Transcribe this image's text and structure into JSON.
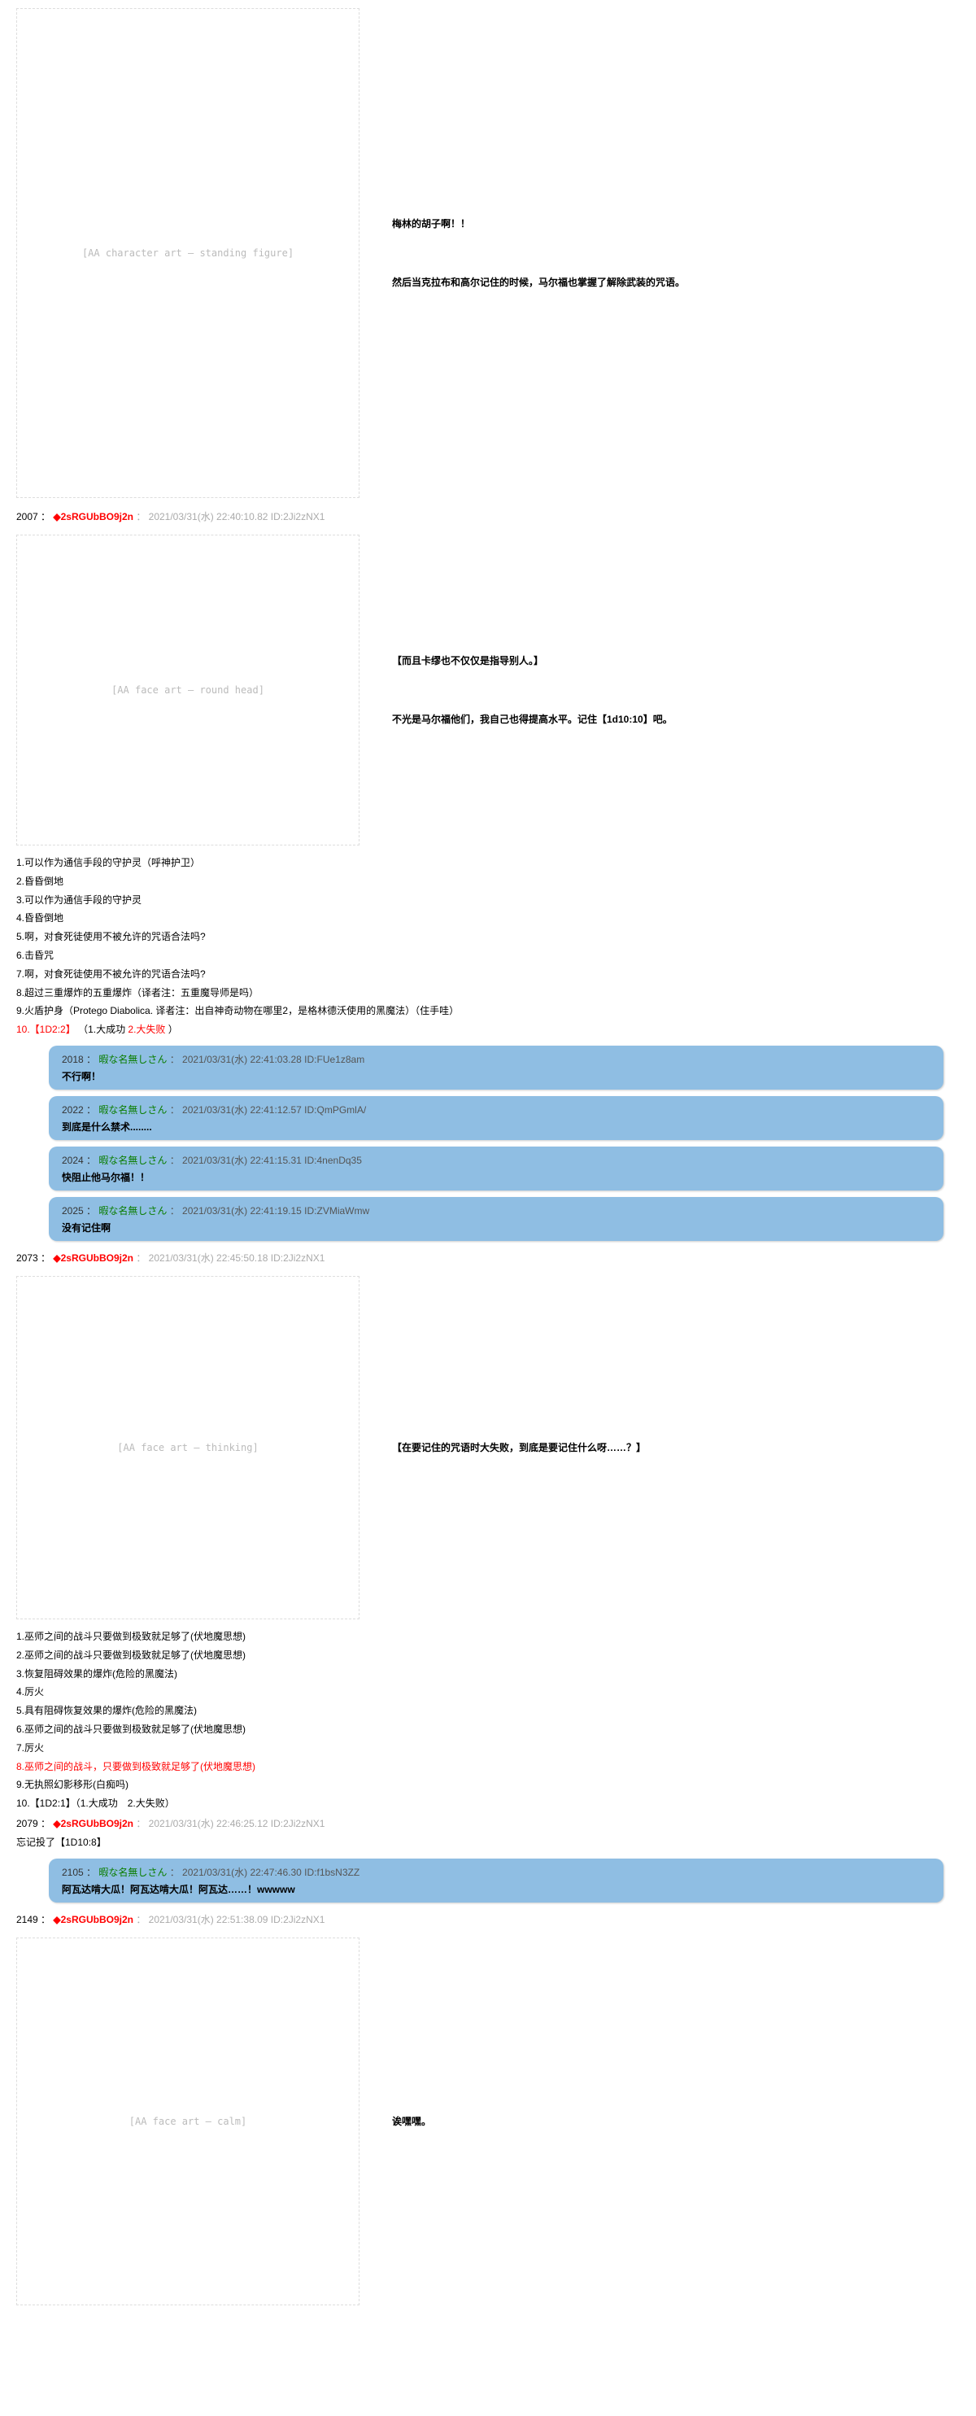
{
  "block1": {
    "art_placeholder": "[AA character art — standing figure]",
    "art_height": 600,
    "line1": "梅林的胡子啊！！",
    "line2": "然后当克拉布和高尔记住的时候，马尔福也掌握了解除武装的咒语。"
  },
  "post2007": {
    "no": "2007 ：",
    "trip": "◆2sRGUbBO9j2n",
    "date": "： 2021/03/31(水) 22:40:10.82 ID:2Ji2zNX1"
  },
  "block2": {
    "art_placeholder": "[AA face art — round head]",
    "art_height": 380,
    "line1": "【而且卡缪也不仅仅是指导别人。】",
    "line2": "不光是马尔福他们，我自己也得提高水平。记住【1d10:10】吧。"
  },
  "list1": {
    "i1": "1.可以作为通信手段的守护灵（呼神护卫）",
    "i2": "2.昏昏倒地",
    "i3": "3.可以作为通信手段的守护灵",
    "i4": "4.昏昏倒地",
    "i5": "5.啊，对食死徒使用不被允许的咒语合法吗?",
    "i6": "6.击昏咒",
    "i7": "7.啊，对食死徒使用不被允许的咒语合法吗?",
    "i8": "8.超过三重爆炸的五重爆炸（译者注：五重魔导师是吗）",
    "i9": "9.火盾护身（Protego Diabolica. 译者注：出自神奇动物在哪里2，是格林德沃使用的黑魔法）（住手哇）",
    "i10a": "10.【1D2:2】",
    "i10b": "（1.大成功 ",
    "i10c": "2.大失败",
    "i10d": "）"
  },
  "replies1": [
    {
      "no": "2018",
      "name": "暇な名無しさん",
      "date": "2021/03/31(水) 22:41:03.28 ID:FUe1z8am",
      "body": "不行啊！"
    },
    {
      "no": "2022",
      "name": "暇な名無しさん",
      "date": "2021/03/31(水) 22:41:12.57 ID:QmPGmlA/",
      "body": "到底是什么禁术........"
    },
    {
      "no": "2024",
      "name": "暇な名無しさん",
      "date": "2021/03/31(水) 22:41:15.31 ID:4nenDq35",
      "body": "快阻止他马尔福！！"
    },
    {
      "no": "2025",
      "name": "暇な名無しさん",
      "date": "2021/03/31(水) 22:41:19.15 ID:ZVMiaWmw",
      "body": "没有记住啊"
    }
  ],
  "post2073": {
    "no": "2073 ：",
    "trip": "◆2sRGUbBO9j2n",
    "date": "： 2021/03/31(水) 22:45:50.18 ID:2Ji2zNX1"
  },
  "block3": {
    "art_placeholder": "[AA face art — thinking]",
    "art_height": 420,
    "line1": "【在要记住的咒语时大失败，到底是要记住什么呀……？】"
  },
  "list2": {
    "i1": "1.巫师之间的战斗只要做到极致就足够了(伏地魔思想)",
    "i2": "2.巫师之间的战斗只要做到极致就足够了(伏地魔思想)",
    "i3": "3.恢复阻碍效果的爆炸(危险的黑魔法)",
    "i4": "4.厉火",
    "i5": "5.具有阻碍恢复效果的爆炸(危险的黑魔法)",
    "i6": "6.巫师之间的战斗只要做到极致就足够了(伏地魔思想)",
    "i7": "7.厉火",
    "i8": "8.巫师之间的战斗，只要做到极致就足够了(伏地魔思想)",
    "i9": "9.无执照幻影移形(白痴吗)",
    "i10": "10.【1D2:1】（1.大成功　2.大失败）"
  },
  "post2079": {
    "no": "2079 ：",
    "trip": "◆2sRGUbBO9j2n",
    "date": "： 2021/03/31(水) 22:46:25.12 ID:2Ji2zNX1",
    "body": "忘记投了【1D10:8】"
  },
  "replies2": [
    {
      "no": "2105",
      "name": "暇な名無しさん",
      "date": "2021/03/31(水) 22:47:46.30 ID:f1bsN3ZZ",
      "body": "阿瓦达啃大瓜！阿瓦达啃大瓜！阿瓦达……！wwwww"
    }
  ],
  "post2149": {
    "no": "2149 ：",
    "trip": "◆2sRGUbBO9j2n",
    "date": "： 2021/03/31(水) 22:51:38.09 ID:2Ji2zNX1"
  },
  "block4": {
    "art_placeholder": "[AA face art — calm]",
    "art_height": 450,
    "line1": "诶嘿嘿。"
  }
}
